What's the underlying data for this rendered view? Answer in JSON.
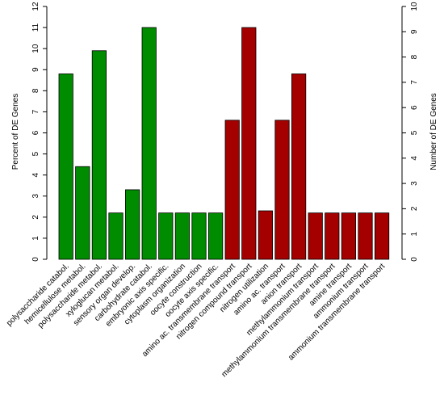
{
  "chart_data": {
    "type": "bar",
    "title": "",
    "ylabel_left": "Percent of DE Genes",
    "ylabel_right": "Number of DE Genes",
    "ylim_left": [
      0,
      12
    ],
    "ylim_right": [
      0,
      10
    ],
    "yticks_left": [
      "0",
      "1",
      "2",
      "3",
      "4",
      "5",
      "6",
      "7",
      "8",
      "9",
      "10",
      "11",
      "12"
    ],
    "yticks_right": [
      "0",
      "1",
      "2",
      "3",
      "4",
      "5",
      "6",
      "7",
      "8",
      "9",
      "10"
    ],
    "grid": false,
    "colors": {
      "green": "#008c00",
      "red": "#a50000"
    },
    "categories": [
      "polysaccharide catabol.",
      "hemicellulose metabol.",
      "polysaccharide metabol.",
      "xyloglucan metabol.",
      "sensory organ develop.",
      "carbohydrate catabol.",
      "embryonic axis specific.",
      "cytoplasm organization",
      "oocyte construction",
      "oocyte axis specific.",
      "amino ac. transmembrane transport",
      "nitrogen compound transport",
      "nitrogen utilization",
      "amino ac. transport",
      "anion transport",
      "methylammonium transport",
      "methylammonium transmembrane transport",
      "amine transport",
      "ammonium transport",
      "ammonium transmembrane transport"
    ],
    "values": [
      8.8,
      4.4,
      9.9,
      2.2,
      3.3,
      11.0,
      2.2,
      2.2,
      2.2,
      2.2,
      6.6,
      11.0,
      2.3,
      6.6,
      8.8,
      2.2,
      2.2,
      2.2,
      2.2,
      2.2
    ],
    "bar_colors": [
      "green",
      "green",
      "green",
      "green",
      "green",
      "green",
      "green",
      "green",
      "green",
      "green",
      "red",
      "red",
      "red",
      "red",
      "red",
      "red",
      "red",
      "red",
      "red",
      "red"
    ]
  }
}
